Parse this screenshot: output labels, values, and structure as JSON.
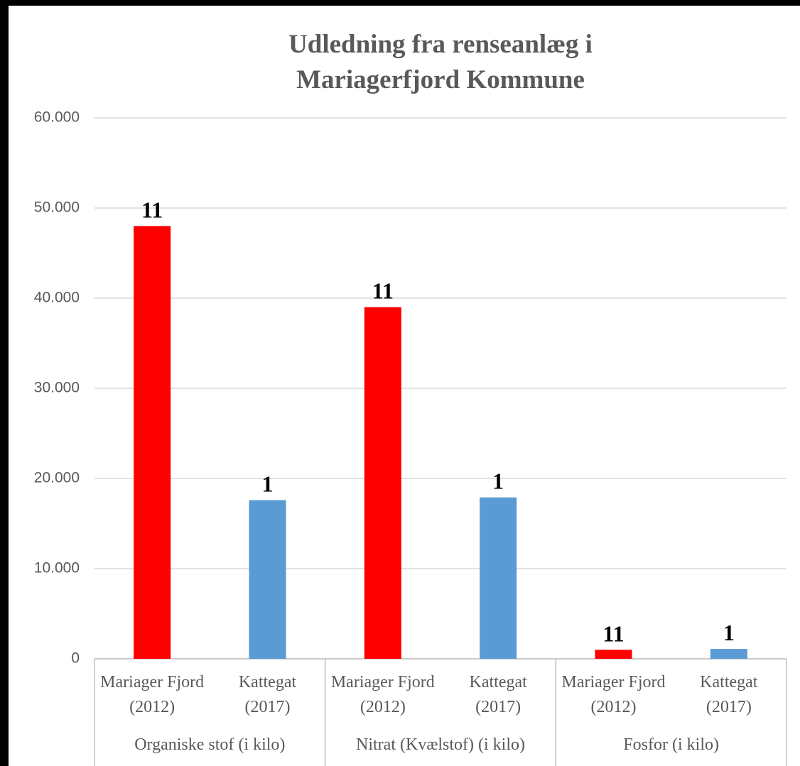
{
  "chart_data": {
    "type": "bar",
    "title": "Udledning fra renseanlæg i Mariagerfjord Kommune",
    "groups": [
      {
        "name": "Organiske stof (i kilo)",
        "categories": [
          "Mariager Fjord (2012)",
          "Kattegat (2017)"
        ],
        "values": [
          48000,
          17600
        ],
        "colors": [
          "#ff0000",
          "#5b9bd5"
        ],
        "data_labels": [
          "11",
          "1"
        ]
      },
      {
        "name": "Nitrat (Kvælstof) (i kilo)",
        "categories": [
          "Mariager Fjord (2012)",
          "Kattegat (2017)"
        ],
        "values": [
          39000,
          17900
        ],
        "colors": [
          "#ff0000",
          "#5b9bd5"
        ],
        "data_labels": [
          "11",
          "1"
        ]
      },
      {
        "name": "Fosfor (i kilo)",
        "categories": [
          "Mariager Fjord (2012)",
          "Kattegat (2017)"
        ],
        "values": [
          1000,
          1100
        ],
        "colors": [
          "#ff0000",
          "#5b9bd5"
        ],
        "data_labels": [
          "11",
          "1"
        ]
      }
    ],
    "ylim": [
      0,
      60000
    ],
    "yticks": [
      0,
      {
        "value": 10000,
        "label": "10.000"
      },
      {
        "value": 20000,
        "label": "20.000"
      },
      {
        "value": 30000,
        "label": "30.000"
      },
      {
        "value": 40000,
        "label": "40.000"
      },
      {
        "value": 50000,
        "label": "50.000"
      },
      {
        "value": 60000,
        "label": "60.000"
      }
    ],
    "grid": true
  }
}
